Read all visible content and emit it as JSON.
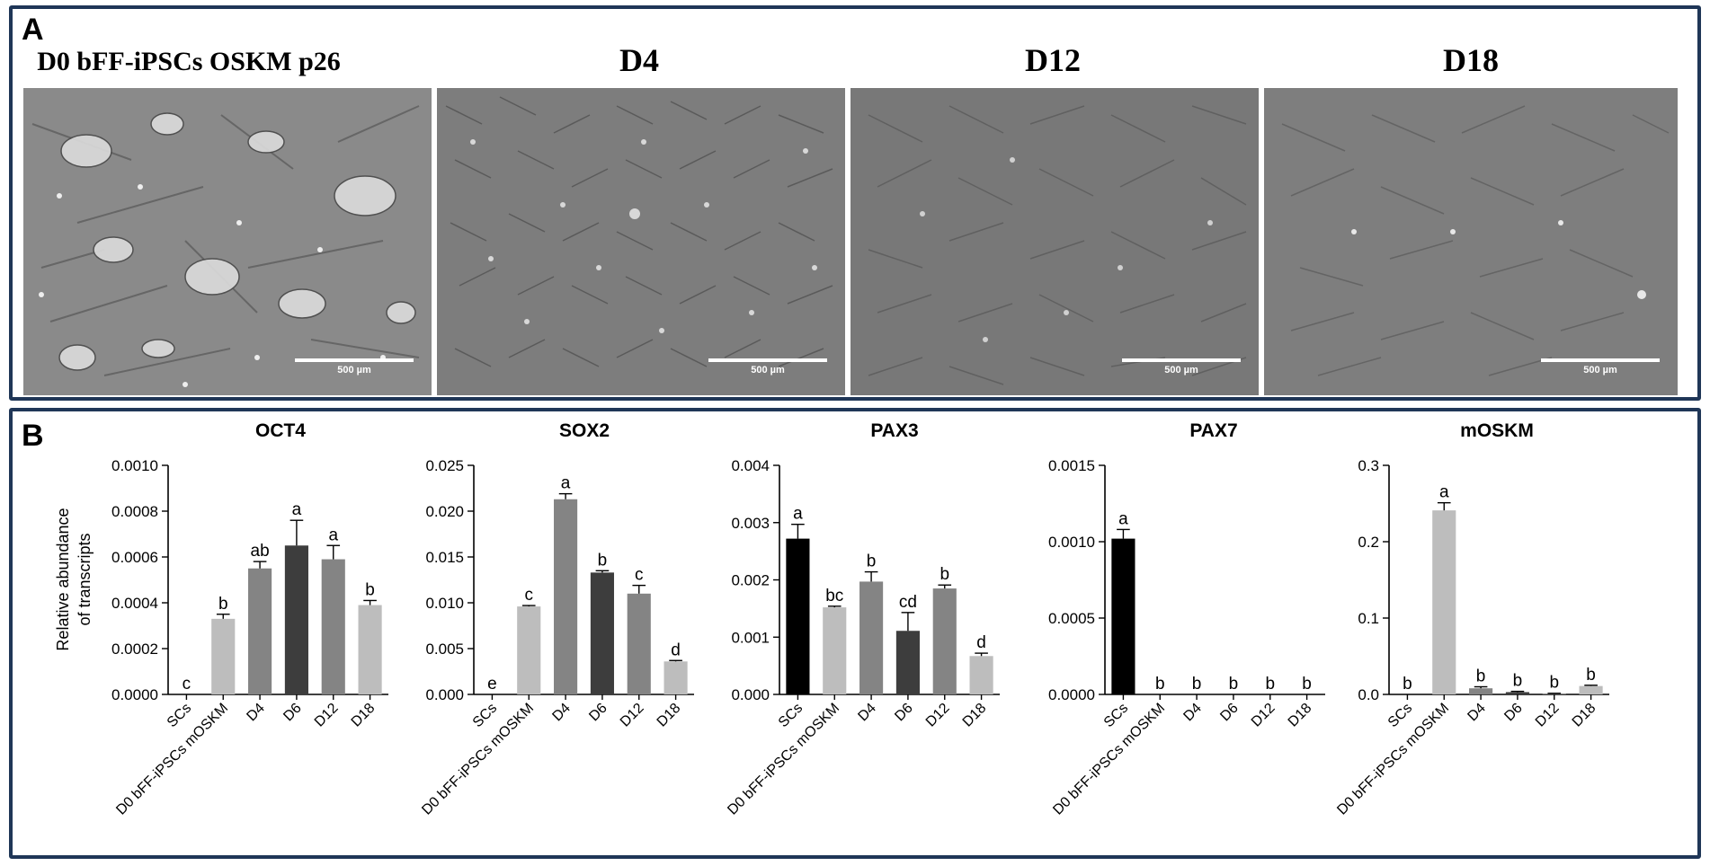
{
  "panel_a": {
    "label": "A",
    "images": [
      {
        "title": "D0 bFF-iPSCs OSKM p26",
        "scale_bar": "500 µm",
        "icon": "microscopy-image"
      },
      {
        "title": "D4",
        "scale_bar": "500 µm",
        "icon": "microscopy-image"
      },
      {
        "title": "D12",
        "scale_bar": "500 µm",
        "icon": "microscopy-image"
      },
      {
        "title": "D18",
        "scale_bar": "500 µm",
        "icon": "microscopy-image"
      }
    ]
  },
  "panel_b": {
    "label": "B"
  },
  "colors": {
    "frame": "#1f3657",
    "SCs": "#000000",
    "D0": "#bdbdbd",
    "D4": "#848484",
    "D6": "#3d3d3d",
    "D12": "#848484",
    "D18": "#bdbdbd"
  },
  "chart_data": [
    {
      "type": "bar",
      "title": "OCT4",
      "ylabel": "Relative abundance\nof transcripts",
      "categories": [
        "SCs",
        "D0 bFF-iPSCs mOSKM",
        "D4",
        "D6",
        "D12",
        "D18"
      ],
      "values": [
        0.0,
        0.00033,
        0.00055,
        0.00065,
        0.00059,
        0.00039
      ],
      "errors": [
        0.0,
        2e-05,
        3e-05,
        0.00011,
        6e-05,
        2e-05
      ],
      "letters": [
        "c",
        "b",
        "ab",
        "a",
        "a",
        "b"
      ],
      "ylim": [
        0,
        0.001
      ],
      "yticks": [
        "0.0000",
        "0.0002",
        "0.0004",
        "0.0006",
        "0.0008",
        "0.0010"
      ]
    },
    {
      "type": "bar",
      "title": "SOX2",
      "ylabel": "",
      "categories": [
        "SCs",
        "D0 bFF-iPSCs mOSKM",
        "D4",
        "D6",
        "D12",
        "D18"
      ],
      "values": [
        0.0,
        0.0096,
        0.0213,
        0.0133,
        0.011,
        0.0036
      ],
      "errors": [
        0.0,
        0.0001,
        0.0006,
        0.0002,
        0.0009,
        0.0001
      ],
      "letters": [
        "e",
        "c",
        "a",
        "b",
        "c",
        "d"
      ],
      "ylim": [
        0,
        0.025
      ],
      "yticks": [
        "0.000",
        "0.005",
        "0.010",
        "0.015",
        "0.020",
        "0.025"
      ]
    },
    {
      "type": "bar",
      "title": "PAX3",
      "ylabel": "",
      "categories": [
        "SCs",
        "D0 bFF-iPSCs mOSKM",
        "D4",
        "D6",
        "D12",
        "D18"
      ],
      "values": [
        0.00272,
        0.00152,
        0.00197,
        0.00111,
        0.00185,
        0.00067
      ],
      "errors": [
        0.00025,
        2e-05,
        0.00017,
        0.00032,
        6e-05,
        5e-05
      ],
      "letters": [
        "a",
        "bc",
        "b",
        "cd",
        "b",
        "d"
      ],
      "ylim": [
        0,
        0.004
      ],
      "yticks": [
        "0.000",
        "0.001",
        "0.002",
        "0.003",
        "0.004"
      ]
    },
    {
      "type": "bar",
      "title": "PAX7",
      "ylabel": "",
      "categories": [
        "SCs",
        "D0 bFF-iPSCs mOSKM",
        "D4",
        "D6",
        "D12",
        "D18"
      ],
      "values": [
        0.00102,
        0.0,
        0.0,
        0.0,
        0.0,
        0.0
      ],
      "errors": [
        6e-05,
        0.0,
        0.0,
        0.0,
        0.0,
        0.0
      ],
      "letters": [
        "a",
        "b",
        "b",
        "b",
        "b",
        "b"
      ],
      "ylim": [
        0,
        0.0015
      ],
      "yticks": [
        "0.0000",
        "0.0005",
        "0.0010",
        "0.0015"
      ]
    },
    {
      "type": "bar",
      "title": "mOSKM",
      "ylabel": "",
      "categories": [
        "SCs",
        "D0 bFF-iPSCs mOSKM",
        "D4",
        "D6",
        "D12",
        "D18"
      ],
      "values": [
        0.0,
        0.241,
        0.008,
        0.003,
        0.001,
        0.011
      ],
      "errors": [
        0.0,
        0.01,
        0.002,
        0.001,
        0.0005,
        0.001
      ],
      "letters": [
        "b",
        "a",
        "b",
        "b",
        "b",
        "b"
      ],
      "ylim": [
        0,
        0.3
      ],
      "yticks": [
        "0.0",
        "0.1",
        "0.2",
        "0.3"
      ]
    }
  ]
}
